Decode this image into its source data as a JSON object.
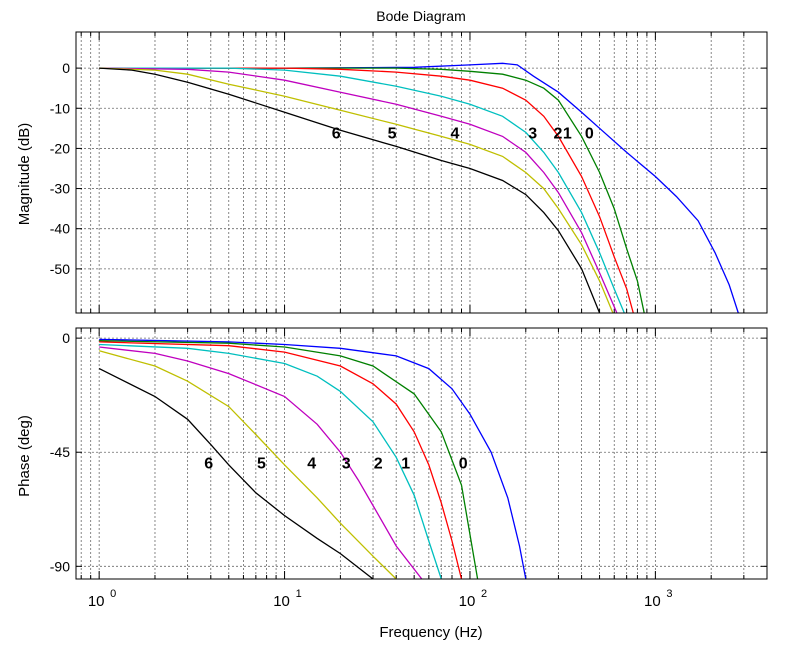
{
  "chart_data": {
    "title": "Bode Diagram",
    "xlabel": "Frequency  (Hz)",
    "xscale": "log",
    "grid": true,
    "x_tick_labels": [
      {
        "base": "10",
        "exp": "0"
      },
      {
        "base": "10",
        "exp": "1"
      },
      {
        "base": "10",
        "exp": "2"
      },
      {
        "base": "10",
        "exp": "3"
      }
    ],
    "panels": [
      {
        "type": "line",
        "ylabel": "Magnitude (dB)",
        "xlim": [
          0.75,
          4000
        ],
        "ylim": [
          -61,
          9
        ],
        "yticks": [
          0,
          -10,
          -20,
          -30,
          -40,
          -50
        ],
        "ytick_labels": [
          "0",
          "-10",
          "-20",
          "-30",
          "-40",
          "-50"
        ],
        "series": [
          {
            "label": "0",
            "color": "#0000ff",
            "points": [
              [
                1,
                0
              ],
              [
                10,
                0
              ],
              [
                50,
                0.2
              ],
              [
                100,
                0.8
              ],
              [
                150,
                1.2
              ],
              [
                180,
                0.8
              ],
              [
                220,
                -2
              ],
              [
                300,
                -6
              ],
              [
                400,
                -11
              ],
              [
                500,
                -15
              ],
              [
                700,
                -21
              ],
              [
                1000,
                -27
              ],
              [
                1300,
                -32
              ],
              [
                1700,
                -38
              ],
              [
                2100,
                -46
              ],
              [
                2500,
                -54
              ],
              [
                2800,
                -61
              ]
            ]
          },
          {
            "label": "1",
            "color": "#008000",
            "points": [
              [
                1,
                0
              ],
              [
                10,
                0
              ],
              [
                40,
                0
              ],
              [
                70,
                -0.3
              ],
              [
                100,
                -0.8
              ],
              [
                150,
                -1.5
              ],
              [
                200,
                -3
              ],
              [
                250,
                -5
              ],
              [
                300,
                -8
              ],
              [
                400,
                -17
              ],
              [
                500,
                -26
              ],
              [
                600,
                -35
              ],
              [
                700,
                -45
              ],
              [
                800,
                -53
              ],
              [
                870,
                -61
              ]
            ]
          },
          {
            "label": "2",
            "color": "#ff0000",
            "points": [
              [
                1,
                0
              ],
              [
                10,
                0
              ],
              [
                20,
                -0.3
              ],
              [
                40,
                -1
              ],
              [
                70,
                -2
              ],
              [
                100,
                -3
              ],
              [
                150,
                -5
              ],
              [
                200,
                -8
              ],
              [
                250,
                -12
              ],
              [
                300,
                -17
              ],
              [
                400,
                -27
              ],
              [
                500,
                -37
              ],
              [
                600,
                -47
              ],
              [
                700,
                -55
              ],
              [
                760,
                -61
              ]
            ]
          },
          {
            "label": "3",
            "color": "#00bfbf",
            "points": [
              [
                1,
                0
              ],
              [
                5,
                0
              ],
              [
                10,
                -0.5
              ],
              [
                20,
                -2
              ],
              [
                40,
                -4.5
              ],
              [
                70,
                -7
              ],
              [
                100,
                -9
              ],
              [
                150,
                -12
              ],
              [
                200,
                -16
              ],
              [
                250,
                -21
              ],
              [
                300,
                -26
              ],
              [
                400,
                -36
              ],
              [
                500,
                -46
              ],
              [
                600,
                -55
              ],
              [
                680,
                -61
              ]
            ]
          },
          {
            "label": "4",
            "color": "#bf00bf",
            "points": [
              [
                1,
                0
              ],
              [
                3,
                -0.3
              ],
              [
                5,
                -1
              ],
              [
                10,
                -3
              ],
              [
                20,
                -6
              ],
              [
                40,
                -9
              ],
              [
                70,
                -12
              ],
              [
                100,
                -14
              ],
              [
                150,
                -17
              ],
              [
                200,
                -21
              ],
              [
                250,
                -26
              ],
              [
                300,
                -31
              ],
              [
                400,
                -41
              ],
              [
                500,
                -51
              ],
              [
                620,
                -61
              ]
            ]
          },
          {
            "label": "5",
            "color": "#bfbf00",
            "points": [
              [
                1,
                0
              ],
              [
                2,
                -0.5
              ],
              [
                3,
                -1.5
              ],
              [
                5,
                -4
              ],
              [
                10,
                -7
              ],
              [
                20,
                -10.5
              ],
              [
                40,
                -14
              ],
              [
                70,
                -17
              ],
              [
                100,
                -19
              ],
              [
                150,
                -22
              ],
              [
                200,
                -26
              ],
              [
                250,
                -30
              ],
              [
                300,
                -35
              ],
              [
                400,
                -44
              ],
              [
                500,
                -53
              ],
              [
                590,
                -61
              ]
            ]
          },
          {
            "label": "6",
            "color": "#000000",
            "points": [
              [
                1,
                0
              ],
              [
                1.5,
                -0.5
              ],
              [
                2,
                -1.5
              ],
              [
                3,
                -3.5
              ],
              [
                5,
                -6.5
              ],
              [
                10,
                -11
              ],
              [
                20,
                -15.5
              ],
              [
                40,
                -19.5
              ],
              [
                70,
                -23
              ],
              [
                100,
                -25
              ],
              [
                150,
                -28
              ],
              [
                200,
                -31.5
              ],
              [
                250,
                -36
              ],
              [
                300,
                -40.5
              ],
              [
                400,
                -50
              ],
              [
                500,
                -61
              ]
            ]
          }
        ],
        "annotations": [
          {
            "text": "6",
            "x": 19,
            "y": -16
          },
          {
            "text": "5",
            "x": 38,
            "y": -16
          },
          {
            "text": "4",
            "x": 83,
            "y": -16
          },
          {
            "text": "3",
            "x": 218,
            "y": -16
          },
          {
            "text": "2",
            "x": 298,
            "y": -16
          },
          {
            "text": "1",
            "x": 335,
            "y": -16
          },
          {
            "text": "0",
            "x": 440,
            "y": -16
          }
        ]
      },
      {
        "type": "line",
        "ylabel": "Phase (deg)",
        "xlim": [
          0.75,
          4000
        ],
        "ylim": [
          -95,
          4
        ],
        "yticks": [
          0,
          -45,
          -90
        ],
        "ytick_labels": [
          "0",
          "-45",
          "-90"
        ],
        "series": [
          {
            "label": "0",
            "color": "#0000ff",
            "points": [
              [
                1,
                -0.5
              ],
              [
                5,
                -1.5
              ],
              [
                10,
                -2.5
              ],
              [
                20,
                -4
              ],
              [
                40,
                -7
              ],
              [
                60,
                -12
              ],
              [
                80,
                -20
              ],
              [
                100,
                -30
              ],
              [
                130,
                -45
              ],
              [
                160,
                -63
              ],
              [
                185,
                -82
              ],
              [
                200,
                -95
              ]
            ]
          },
          {
            "label": "1",
            "color": "#008000",
            "points": [
              [
                1,
                -1
              ],
              [
                5,
                -2
              ],
              [
                10,
                -3.5
              ],
              [
                20,
                -7
              ],
              [
                30,
                -11
              ],
              [
                50,
                -22
              ],
              [
                70,
                -37
              ],
              [
                90,
                -58
              ],
              [
                110,
                -95
              ]
            ]
          },
          {
            "label": "2",
            "color": "#ff0000",
            "points": [
              [
                1,
                -1.5
              ],
              [
                5,
                -3
              ],
              [
                10,
                -5.5
              ],
              [
                20,
                -11
              ],
              [
                30,
                -18
              ],
              [
                40,
                -26
              ],
              [
                50,
                -37
              ],
              [
                60,
                -50
              ],
              [
                70,
                -65
              ],
              [
                80,
                -80
              ],
              [
                90,
                -95
              ]
            ]
          },
          {
            "label": "3",
            "color": "#00bfbf",
            "points": [
              [
                1,
                -2.5
              ],
              [
                3,
                -4
              ],
              [
                5,
                -6
              ],
              [
                10,
                -10
              ],
              [
                15,
                -15
              ],
              [
                20,
                -21
              ],
              [
                30,
                -33
              ],
              [
                40,
                -47
              ],
              [
                50,
                -62
              ],
              [
                60,
                -80
              ],
              [
                70,
                -95
              ]
            ]
          },
          {
            "label": "4",
            "color": "#bf00bf",
            "points": [
              [
                1,
                -3.5
              ],
              [
                2,
                -6
              ],
              [
                3,
                -9
              ],
              [
                5,
                -14
              ],
              [
                10,
                -23
              ],
              [
                15,
                -34
              ],
              [
                20,
                -45
              ],
              [
                25,
                -56
              ],
              [
                30,
                -66
              ],
              [
                40,
                -82
              ],
              [
                55,
                -95
              ]
            ]
          },
          {
            "label": "5",
            "color": "#bfbf00",
            "points": [
              [
                1,
                -5
              ],
              [
                2,
                -11
              ],
              [
                3,
                -17
              ],
              [
                5,
                -27
              ],
              [
                7,
                -38
              ],
              [
                10,
                -50
              ],
              [
                15,
                -63
              ],
              [
                20,
                -73
              ],
              [
                30,
                -86
              ],
              [
                40,
                -95
              ]
            ]
          },
          {
            "label": "6",
            "color": "#000000",
            "points": [
              [
                1,
                -12
              ],
              [
                2,
                -23
              ],
              [
                3,
                -32
              ],
              [
                4,
                -42
              ],
              [
                5,
                -50
              ],
              [
                7,
                -61
              ],
              [
                10,
                -70
              ],
              [
                15,
                -79
              ],
              [
                20,
                -85
              ],
              [
                30,
                -95
              ]
            ]
          }
        ],
        "annotations": [
          {
            "text": "6",
            "x": 3.9,
            "y": -49
          },
          {
            "text": "5",
            "x": 7.5,
            "y": -49
          },
          {
            "text": "4",
            "x": 14,
            "y": -49
          },
          {
            "text": "3",
            "x": 21.5,
            "y": -49
          },
          {
            "text": "2",
            "x": 32,
            "y": -49
          },
          {
            "text": "1",
            "x": 45,
            "y": -49
          },
          {
            "text": "0",
            "x": 92,
            "y": -49
          }
        ]
      }
    ]
  }
}
